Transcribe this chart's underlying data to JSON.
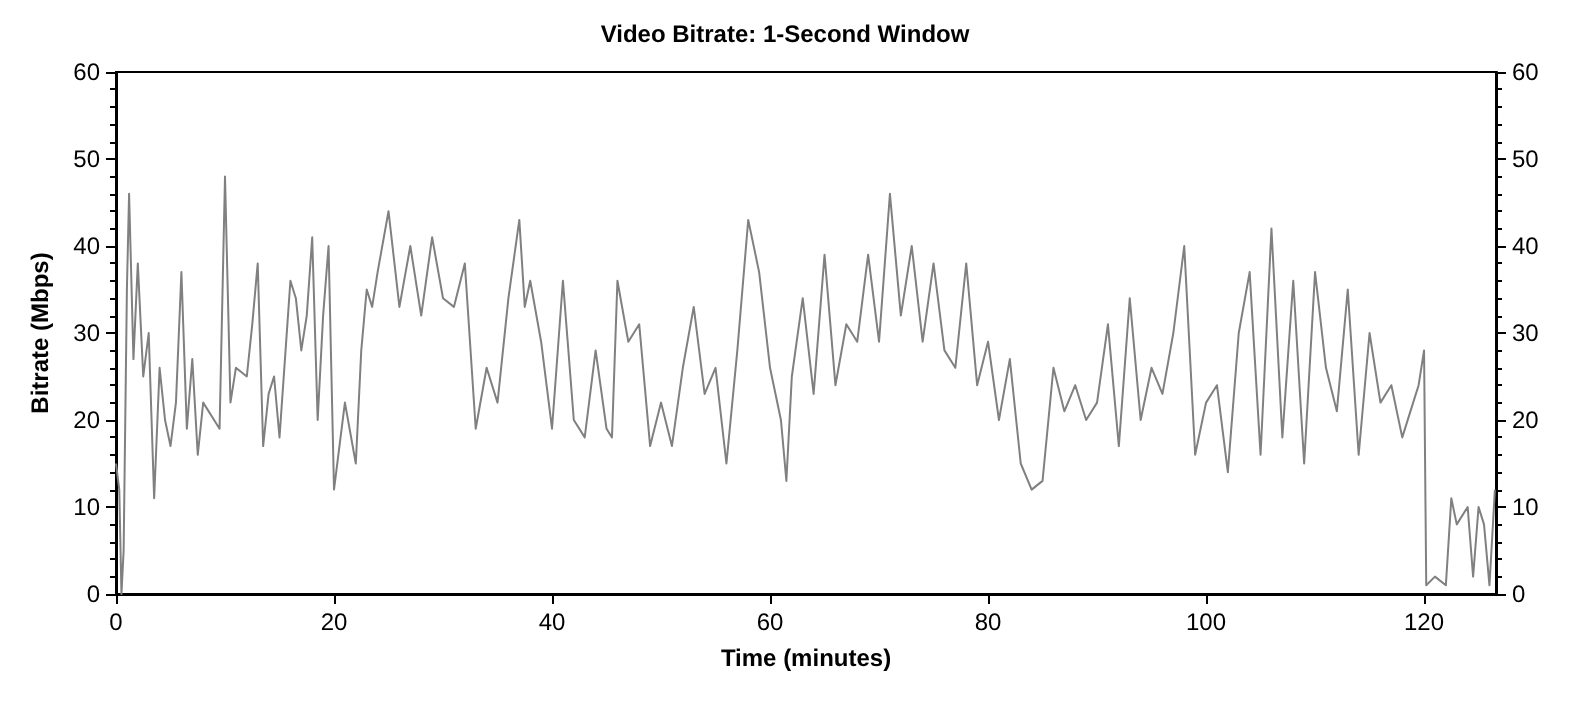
{
  "chart_data": {
    "type": "line",
    "title": "Video Bitrate: 1-Second Window",
    "xlabel": "Time (minutes)",
    "ylabel": "Bitrate (Mbps)",
    "marker": "none",
    "line_style": "solid",
    "xlim": [
      0,
      126.6
    ],
    "xticks": [
      0,
      20,
      40,
      60,
      80,
      100,
      120
    ],
    "ylim": [
      0,
      60
    ],
    "yticks": [
      0,
      10,
      20,
      30,
      40,
      50,
      60
    ],
    "y2lim": [
      0,
      60
    ],
    "y2ticks": [
      0,
      10,
      20,
      30,
      40,
      50,
      60
    ],
    "x": [
      0,
      0.3,
      0.5,
      0.7,
      1,
      1.2,
      1.6,
      2,
      2.5,
      3,
      3.5,
      4,
      4.5,
      5,
      5.5,
      6,
      6.5,
      7,
      7.5,
      8,
      9,
      9.5,
      10,
      10.5,
      11,
      12,
      12.5,
      13,
      13.5,
      14,
      14.5,
      15,
      16,
      16.5,
      17,
      17.5,
      18,
      18.5,
      19,
      19.5,
      20,
      21,
      22,
      22.5,
      23,
      23.5,
      24,
      25,
      26,
      27,
      28,
      29,
      30,
      31,
      32,
      33,
      34,
      35,
      36,
      37,
      37.5,
      38,
      39,
      40,
      41,
      42,
      43,
      44,
      45,
      45.5,
      46,
      47,
      48,
      49,
      50,
      51,
      52,
      53,
      54,
      55,
      56,
      57,
      58,
      59,
      60,
      61,
      61.5,
      62,
      63,
      64,
      65,
      66,
      67,
      68,
      69,
      70,
      71,
      72,
      73,
      74,
      75,
      76,
      77,
      78,
      79,
      80,
      81,
      82,
      83,
      84,
      85,
      86,
      87,
      88,
      89,
      90,
      91,
      92,
      93,
      94,
      95,
      96,
      97,
      98,
      99,
      100,
      101,
      102,
      103,
      104,
      105,
      106,
      107,
      108,
      109,
      110,
      111,
      112,
      113,
      114,
      115,
      116,
      117,
      118,
      119,
      119.5,
      120,
      120.2,
      121,
      122,
      122.5,
      123,
      124,
      124.5,
      125,
      125.5,
      126,
      126.5
    ],
    "series": [
      {
        "color": "#808080",
        "values": [
          15,
          12,
          0,
          5,
          35,
          46,
          27,
          38,
          25,
          30,
          11,
          26,
          20,
          17,
          22,
          37,
          19,
          27,
          16,
          22,
          20,
          19,
          48,
          22,
          26,
          25,
          31,
          38,
          17,
          23,
          25,
          18,
          36,
          34,
          28,
          32,
          41,
          20,
          32,
          40,
          12,
          22,
          15,
          28,
          35,
          33,
          37,
          44,
          33,
          40,
          32,
          41,
          34,
          33,
          38,
          19,
          26,
          22,
          34,
          43,
          33,
          36,
          29,
          19,
          36,
          20,
          18,
          28,
          19,
          18,
          36,
          29,
          31,
          17,
          22,
          17,
          26,
          33,
          23,
          26,
          15,
          28,
          43,
          37,
          26,
          20,
          13,
          25,
          34,
          23,
          39,
          24,
          31,
          29,
          39,
          29,
          46,
          32,
          40,
          29,
          38,
          28,
          26,
          38,
          24,
          29,
          20,
          27,
          15,
          12,
          13,
          26,
          21,
          24,
          20,
          22,
          31,
          17,
          34,
          20,
          26,
          23,
          30,
          40,
          16,
          22,
          24,
          14,
          30,
          37,
          16,
          42,
          18,
          36,
          15,
          37,
          26,
          21,
          35,
          16,
          30,
          22,
          24,
          18,
          22,
          24,
          28,
          1,
          2,
          1,
          11,
          8,
          10,
          2,
          10,
          8,
          1,
          12
        ]
      }
    ]
  }
}
